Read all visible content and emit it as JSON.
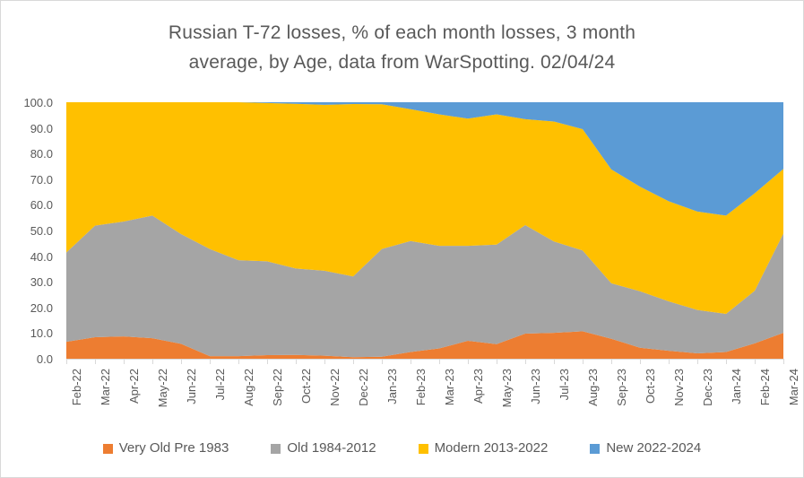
{
  "title": {
    "line1": "Russian T-72 losses, % of each month losses, 3 month",
    "line2": "average, by Age, data from WarSpotting. 02/04/24"
  },
  "colors": {
    "very_old": "#ED7D31",
    "old": "#A5A5A5",
    "modern": "#FFC000",
    "new": "#5B9BD5",
    "axis": "#D9D9D9",
    "text": "#595959",
    "border": "#D9D9D9"
  },
  "y_axis": {
    "tick_labels": [
      "0.0",
      "10.0",
      "20.0",
      "30.0",
      "40.0",
      "50.0",
      "60.0",
      "70.0",
      "80.0",
      "90.0",
      "100.0"
    ],
    "min": 0,
    "max": 100
  },
  "legend": {
    "items": [
      {
        "label": "Very Old Pre 1983",
        "series_key": "very_old"
      },
      {
        "label": "Old 1984-2012",
        "series_key": "old"
      },
      {
        "label": "Modern 2013-2022",
        "series_key": "modern"
      },
      {
        "label": "New 2022-2024",
        "series_key": "new"
      }
    ]
  },
  "chart_data": {
    "type": "area",
    "stacked": true,
    "normalized_total": 100,
    "title": "Russian T-72 losses, % of each month losses, 3 month average, by Age, data from WarSpotting. 02/04/24",
    "xlabel": "",
    "ylabel": "",
    "ylim": [
      0,
      100
    ],
    "grid": false,
    "legend_position": "bottom",
    "categories": [
      "Feb-22",
      "Mar-22",
      "Apr-22",
      "May-22",
      "Jun-22",
      "Jul-22",
      "Aug-22",
      "Sep-22",
      "Oct-22",
      "Nov-22",
      "Dec-22",
      "Jan-23",
      "Feb-23",
      "Mar-23",
      "Apr-23",
      "May-23",
      "Jun-23",
      "Jul-23",
      "Aug-23",
      "Sep-23",
      "Oct-23",
      "Nov-23",
      "Dec-23",
      "Jan-24",
      "Feb-24",
      "Mar-24"
    ],
    "series": [
      {
        "name": "Very Old Pre 1983",
        "color": "#ED7D31",
        "values": [
          6.6,
          8.4,
          8.7,
          8.0,
          5.8,
          1.0,
          1.0,
          1.4,
          1.5,
          1.2,
          0.6,
          0.8,
          2.6,
          4.0,
          7.0,
          5.7,
          9.8,
          10.1,
          10.7,
          7.8,
          4.3,
          3.1,
          2.1,
          2.6,
          6.0,
          10.1
        ]
      },
      {
        "name": "Old 1984-2012",
        "color": "#A5A5A5",
        "values": [
          34.8,
          43.5,
          44.8,
          47.8,
          42.8,
          41.8,
          37.4,
          36.6,
          33.7,
          33.1,
          31.5,
          42.0,
          43.3,
          40.0,
          37.0,
          38.8,
          42.3,
          35.6,
          31.5,
          21.6,
          22.0,
          19.3,
          16.9,
          14.9,
          20.5,
          38.7
        ]
      },
      {
        "name": "Modern 2013-2022",
        "color": "#FFC000",
        "values": [
          58.6,
          48.1,
          46.5,
          44.2,
          51.4,
          57.2,
          61.6,
          61.7,
          64.2,
          64.7,
          67.2,
          56.4,
          51.4,
          51.3,
          49.6,
          50.8,
          41.3,
          46.8,
          47.3,
          44.4,
          40.8,
          39.0,
          38.4,
          38.3,
          38.0,
          25.2
        ]
      },
      {
        "name": "New 2022-2024",
        "color": "#5B9BD5",
        "values": [
          0.0,
          0.0,
          0.0,
          0.0,
          0.0,
          0.0,
          0.0,
          0.3,
          0.6,
          1.0,
          0.7,
          0.8,
          2.7,
          4.7,
          6.4,
          4.7,
          6.6,
          7.5,
          10.5,
          26.2,
          32.9,
          38.6,
          42.6,
          44.2,
          35.5,
          26.0
        ]
      }
    ]
  }
}
